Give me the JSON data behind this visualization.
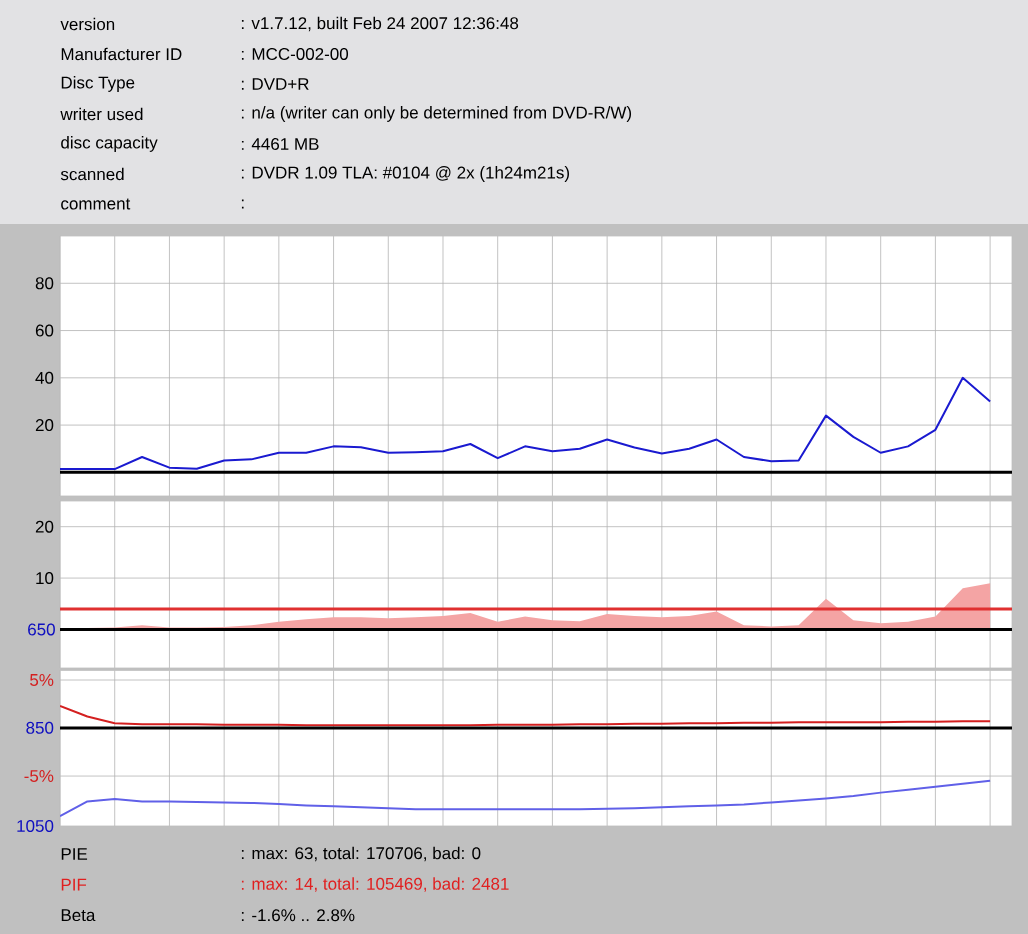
{
  "chart_data": [
    {
      "type": "other",
      "annotations": [
        "version",
        ": v1.7.12, built Feb 24 2007 12:36:48",
        "Manufacturer ID",
        ": MCC-002-00",
        "Disc Type",
        ": DVD+R",
        "writer used",
        ": n/a (writer can only be determined from DVD-R/W)",
        "disc capacity",
        ": 4461 MB",
        "scanned",
        ": DVDR 1.09 TLA: #0104 @ 2x (1h24m21s)",
        "comment",
        ":"
      ]
    },
    {
      "type": "line",
      "color": "#1a1ad0",
      "ylim": [
        -10,
        100
      ],
      "yticks": [
        20,
        40,
        60,
        80
      ],
      "grid": true,
      "tick_labels": "y",
      "categories": [
        null,
        null,
        null,
        null,
        null,
        null,
        null,
        null,
        null,
        null,
        null,
        null,
        null,
        null,
        null,
        null,
        null,
        null,
        null,
        null,
        null,
        null,
        null,
        null,
        null,
        null,
        null,
        null,
        null,
        null,
        null,
        null,
        null,
        null,
        null
      ],
      "values": [
        1.4,
        1.4,
        1.4,
        6.5,
        2.0,
        1.5,
        5,
        5.5,
        8.3,
        8.3,
        11,
        10.6,
        8.3,
        8.5,
        8.9,
        12,
        6,
        11,
        8.9,
        10,
        13.9,
        10.5,
        8,
        10,
        13.9,
        6.5,
        4.7,
        5,
        24,
        15,
        8.3,
        11,
        18,
        40,
        30
      ],
      "ref_lines": [
        {
          "axis": "y",
          "value": 0,
          "color": "#000000"
        }
      ]
    },
    {
      "type": "area",
      "color": "#f4a4a4",
      "ylim": [
        -7.5,
        25
      ],
      "yticks": [
        10,
        20
      ],
      "grid": true,
      "tick_labels": "y",
      "annotations": [
        "650"
      ],
      "categories": [
        null,
        null,
        null,
        null,
        null,
        null,
        null,
        null,
        null,
        null,
        null,
        null,
        null,
        null,
        null,
        null,
        null,
        null,
        null,
        null,
        null,
        null,
        null,
        null,
        null,
        null,
        null,
        null,
        null,
        null,
        null,
        null,
        null,
        null,
        null
      ],
      "values": [
        0.3,
        0.3,
        0.4,
        0.8,
        0.4,
        0.4,
        0.5,
        0.8,
        1.5,
        2.0,
        2.4,
        2.4,
        2.2,
        2.4,
        2.6,
        3.2,
        1.5,
        2.5,
        1.8,
        1.6,
        3.0,
        2.6,
        2.4,
        2.6,
        3.5,
        0.8,
        0.6,
        0.8,
        6.0,
        1.8,
        1.2,
        1.5,
        2.5,
        8.0,
        9.0
      ],
      "ref_lines": [
        {
          "axis": "y",
          "value": 0,
          "color": "#000000"
        },
        {
          "axis": "y",
          "value": 4,
          "color": "#e03030"
        }
      ]
    },
    {
      "type": "line",
      "ylim": [
        -10.2,
        6
      ],
      "yticks": [
        {
          "value": 5,
          "label": "5%"
        },
        {
          "value": -5,
          "label": "-5%"
        }
      ],
      "y2lim": [
        1050,
        733
      ],
      "y2ticks": [
        850,
        1050
      ],
      "grid": true,
      "tick_labels": "y",
      "categories": [
        null,
        null,
        null,
        null,
        null,
        null,
        null,
        null,
        null,
        null,
        null,
        null,
        null,
        null,
        null,
        null,
        null,
        null,
        null,
        null,
        null,
        null,
        null,
        null,
        null,
        null,
        null,
        null,
        null,
        null,
        null,
        null,
        null,
        null,
        null
      ],
      "series": [
        {
          "color": "#d42020",
          "values": [
            2.3,
            1.2,
            0.5,
            0.4,
            0.4,
            0.4,
            0.35,
            0.35,
            0.35,
            0.3,
            0.3,
            0.3,
            0.3,
            0.3,
            0.3,
            0.3,
            0.35,
            0.35,
            0.35,
            0.4,
            0.4,
            0.45,
            0.45,
            0.5,
            0.5,
            0.55,
            0.55,
            0.6,
            0.6,
            0.6,
            0.6,
            0.65,
            0.65,
            0.7,
            0.7
          ]
        },
        {
          "color": "#6060e8",
          "axis": "y2",
          "values": [
            1030,
            1000,
            995,
            1000,
            1000,
            1001,
            1002,
            1003,
            1005,
            1008,
            1010,
            1012,
            1014,
            1016,
            1016,
            1016,
            1016,
            1016,
            1016,
            1016,
            1015,
            1014,
            1012,
            1010,
            1008,
            1006,
            1002,
            998,
            994,
            989,
            982,
            976,
            970,
            964,
            958
          ]
        }
      ],
      "ref_lines": [
        {
          "axis": "y",
          "value": 0,
          "color": "#000000"
        }
      ]
    },
    {
      "type": "other",
      "annotations": [
        "PIE",
        ": max: 63, total: 170706, bad: 0",
        "PIF",
        ": max: 14, total: 105469, bad: 2481",
        "Beta",
        ": -1.6% .. 2.8%"
      ]
    }
  ]
}
